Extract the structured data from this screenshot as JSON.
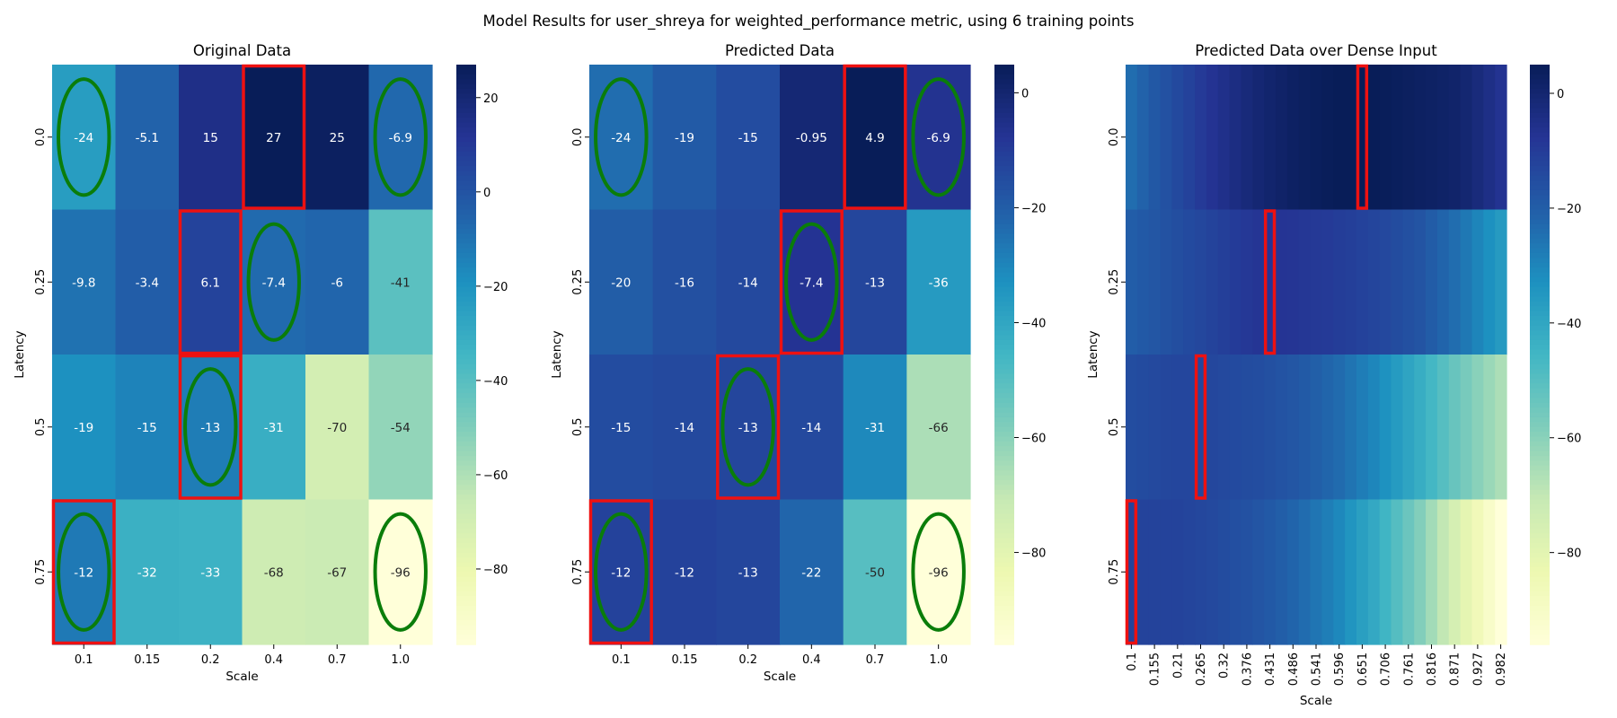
{
  "figure": {
    "suptitle": "Model Results for user_shreya for weighted_performance metric, using 6 training points"
  },
  "palette": {
    "stops": [
      "#ffffd9",
      "#edf8b1",
      "#c7e9b4",
      "#7fcdbb",
      "#41b6c4",
      "#1d91c0",
      "#225ea8",
      "#253494",
      "#081d58"
    ],
    "highlight_box": "#ee1111",
    "training_ellipse": "#0a7d0a",
    "light_text": "#ffffff",
    "dark_text": "#262626"
  },
  "chart_data": [
    {
      "type": "heatmap",
      "title": "Original Data",
      "xlabel": "Scale",
      "ylabel": "Latency",
      "x_categories": [
        "0.1",
        "0.15",
        "0.2",
        "0.4",
        "0.7",
        "1.0"
      ],
      "y_categories": [
        "0.0",
        "0.25",
        "0.5",
        "0.75"
      ],
      "values": [
        [
          -24,
          -5.1,
          15,
          27,
          25,
          -6.9
        ],
        [
          -9.8,
          -3.4,
          6.1,
          -7.4,
          -6,
          -41
        ],
        [
          -19,
          -15,
          -13,
          -31,
          -70,
          -54
        ],
        [
          -12,
          -32,
          -33,
          -68,
          -67,
          -96
        ]
      ],
      "annotations": [
        [
          "-24",
          "-5.1",
          "15",
          "27",
          "25",
          "-6.9"
        ],
        [
          "-9.8",
          "-3.4",
          "6.1",
          "-7.4",
          "-6",
          "-41"
        ],
        [
          "-19",
          "-15",
          "-13",
          "-31",
          "-70",
          "-54"
        ],
        [
          "-12",
          "-32",
          "-33",
          "-68",
          "-67",
          "-96"
        ]
      ],
      "vmin": -96,
      "vmax": 27,
      "colorbar_ticks": [
        20,
        0,
        -20,
        -40,
        -60,
        -80
      ],
      "colorbar_tick_labels": [
        "20",
        "0",
        "−20",
        "−40",
        "−60",
        "−80"
      ],
      "highlighted_cells": [
        [
          0,
          3
        ],
        [
          1,
          2
        ],
        [
          2,
          2
        ],
        [
          3,
          0
        ]
      ],
      "training_points": [
        [
          0,
          0
        ],
        [
          0,
          5
        ],
        [
          1,
          3
        ],
        [
          2,
          2
        ],
        [
          3,
          0
        ],
        [
          3,
          5
        ]
      ]
    },
    {
      "type": "heatmap",
      "title": "Predicted Data",
      "xlabel": "Scale",
      "ylabel": "Latency",
      "x_categories": [
        "0.1",
        "0.15",
        "0.2",
        "0.4",
        "0.7",
        "1.0"
      ],
      "y_categories": [
        "0.0",
        "0.25",
        "0.5",
        "0.75"
      ],
      "values": [
        [
          -24,
          -19,
          -15,
          -0.95,
          4.9,
          -6.9
        ],
        [
          -20,
          -16,
          -14,
          -7.4,
          -13,
          -36
        ],
        [
          -15,
          -14,
          -13,
          -14,
          -31,
          -66
        ],
        [
          -12,
          -12,
          -13,
          -22,
          -50,
          -96
        ]
      ],
      "annotations": [
        [
          "-24",
          "-19",
          "-15",
          "-0.95",
          "4.9",
          "-6.9"
        ],
        [
          "-20",
          "-16",
          "-14",
          "-7.4",
          "-13",
          "-36"
        ],
        [
          "-15",
          "-14",
          "-13",
          "-14",
          "-31",
          "-66"
        ],
        [
          "-12",
          "-12",
          "-13",
          "-22",
          "-50",
          "-96"
        ]
      ],
      "vmin": -96,
      "vmax": 4.9,
      "colorbar_ticks": [
        0,
        -20,
        -40,
        -60,
        -80
      ],
      "colorbar_tick_labels": [
        "0",
        "−20",
        "−40",
        "−60",
        "−80"
      ],
      "highlighted_cells": [
        [
          0,
          4
        ],
        [
          1,
          3
        ],
        [
          2,
          2
        ],
        [
          3,
          0
        ]
      ],
      "training_points": [
        [
          0,
          0
        ],
        [
          0,
          5
        ],
        [
          1,
          3
        ],
        [
          2,
          2
        ],
        [
          3,
          0
        ],
        [
          3,
          5
        ]
      ]
    },
    {
      "type": "heatmap",
      "title": "Predicted Data over Dense Input",
      "xlabel": "Scale",
      "ylabel": "Latency",
      "x_tick_labels": [
        "0.1",
        "0.155",
        "0.21",
        "0.265",
        "0.32",
        "0.376",
        "0.431",
        "0.486",
        "0.541",
        "0.596",
        "0.651",
        "0.706",
        "0.761",
        "0.816",
        "0.871",
        "0.927",
        "0.982"
      ],
      "x_range": [
        0.1,
        1.0
      ],
      "x_columns": 33,
      "y_categories": [
        "0.0",
        "0.25",
        "0.5",
        "0.75"
      ],
      "row_profiles": [
        {
          "x": [
            0.1,
            0.15,
            0.2,
            0.3,
            0.4,
            0.5,
            0.6,
            0.65,
            0.7,
            0.8,
            0.9,
            1.0
          ],
          "y": [
            -24,
            -19,
            -15,
            -7,
            -1,
            3,
            5,
            5,
            4.9,
            3,
            1,
            -6.9
          ]
        },
        {
          "x": [
            0.1,
            0.2,
            0.3,
            0.4,
            0.45,
            0.5,
            0.6,
            0.7,
            0.8,
            0.9,
            1.0
          ],
          "y": [
            -20,
            -16,
            -12,
            -8,
            -7.4,
            -8,
            -10,
            -13,
            -17,
            -25,
            -36
          ]
        },
        {
          "x": [
            0.1,
            0.15,
            0.2,
            0.25,
            0.3,
            0.4,
            0.5,
            0.6,
            0.7,
            0.8,
            0.9,
            1.0
          ],
          "y": [
            -15,
            -14,
            -13,
            -13,
            -13.5,
            -15,
            -18,
            -23,
            -31,
            -42,
            -55,
            -66
          ]
        },
        {
          "x": [
            0.1,
            0.2,
            0.3,
            0.4,
            0.5,
            0.6,
            0.7,
            0.8,
            0.9,
            1.0
          ],
          "y": [
            -12,
            -12,
            -14,
            -17,
            -22,
            -30,
            -42,
            -58,
            -78,
            -96
          ]
        }
      ],
      "vmin": -96,
      "vmax": 5,
      "colorbar_ticks": [
        0,
        -20,
        -40,
        -60,
        -80
      ],
      "colorbar_tick_labels": [
        "0",
        "−20",
        "−40",
        "−60",
        "−80"
      ],
      "highlighted_x": [
        0.651,
        0.431,
        0.265,
        0.1
      ]
    }
  ]
}
